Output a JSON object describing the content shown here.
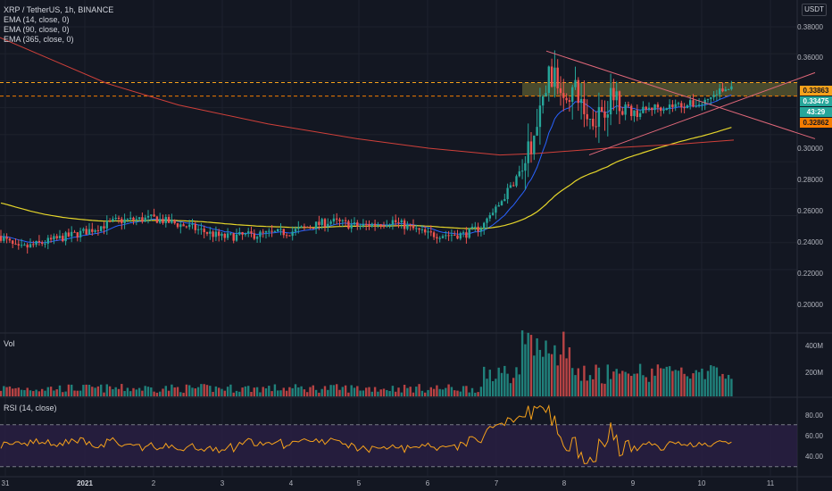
{
  "header": {
    "symbol_title": "XRP / TetherUS, 1h, BINANCE",
    "unit_button": "USDT"
  },
  "indicators": [
    {
      "label": "EMA (14, close, 0)",
      "color": "#2962ff"
    },
    {
      "label": "EMA (90, close, 0)",
      "color": "#e5d52a"
    },
    {
      "label": "EMA (365, close, 0)",
      "color": "#d0403a"
    }
  ],
  "volume_pane": {
    "label": "Vol"
  },
  "rsi_pane": {
    "label": "RSI (14, close)"
  },
  "price_axis": {
    "ticks": [
      "0.38000",
      "0.36000",
      "0.34000",
      "0.32000",
      "0.30000",
      "0.28000",
      "0.26000",
      "0.24000",
      "0.22000",
      "0.20000"
    ],
    "tags": {
      "resistance": "0.33863",
      "last_price": "0.33475",
      "countdown": "43:29",
      "support": "0.32862"
    }
  },
  "volume_axis": {
    "ticks": [
      "400M",
      "200M"
    ]
  },
  "rsi_axis": {
    "ticks": [
      "80.00",
      "60.00",
      "40.00"
    ]
  },
  "time_axis": {
    "ticks": [
      "31",
      "2021",
      "2",
      "3",
      "4",
      "5",
      "6",
      "7",
      "8",
      "9",
      "10",
      "11"
    ]
  },
  "colors": {
    "background": "#131722",
    "up": "#26a69a",
    "down": "#ef5350",
    "ema14": "#2962ff",
    "ema90": "#e5d52a",
    "ema365": "#d0403a",
    "rsi": "#f7a21b",
    "rsi_band": "#2a1f45",
    "resistance_tag": "#f7a21b",
    "last_price_tag": "#26a69a",
    "support_tag": "#f57c00",
    "zone_fill": "#8c8a3c"
  },
  "chart_data": {
    "type": "candlestick",
    "symbol": "XRP / TetherUS",
    "interval": "1h",
    "exchange": "BINANCE",
    "x_dates": [
      "31",
      "2021",
      "2",
      "3",
      "4",
      "5",
      "6",
      "7",
      "8",
      "9",
      "10",
      "11"
    ],
    "ylim": [
      0.195,
      0.385
    ],
    "key_levels": [
      0.33863,
      0.32862
    ],
    "last_price": 0.33475,
    "ema_series": [
      {
        "name": "EMA (14, close, 0)",
        "period": 14,
        "end_value": 0.333
      },
      {
        "name": "EMA (90, close, 0)",
        "period": 90,
        "end_value": 0.305
      },
      {
        "name": "EMA (365, close, 0)",
        "period": 365,
        "end_value": 0.296
      }
    ],
    "rsi_lines": [
      70,
      30
    ],
    "rsi_last": 58,
    "volume_ylim": [
      0,
      450000000
    ]
  }
}
